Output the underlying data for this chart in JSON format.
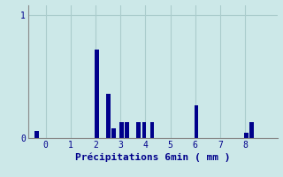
{
  "xlabel": "Précipitations 6min ( mm )",
  "background_color": "#cce8e8",
  "bar_color": "#00008B",
  "grid_color": "#aacccc",
  "axis_color": "#888888",
  "tick_color": "#00008B",
  "label_color": "#00008B",
  "xlim": [
    -0.7,
    9.3
  ],
  "ylim": [
    0,
    1.08
  ],
  "xticks": [
    0,
    1,
    2,
    3,
    4,
    5,
    6,
    7,
    8
  ],
  "yticks": [
    0,
    1
  ],
  "bar_positions": [
    -0.35,
    2.05,
    2.5,
    2.72,
    3.05,
    3.27,
    3.72,
    3.95,
    4.27,
    6.05,
    8.05,
    8.27
  ],
  "bar_heights": [
    0.055,
    0.72,
    0.36,
    0.08,
    0.13,
    0.13,
    0.13,
    0.13,
    0.13,
    0.27,
    0.04,
    0.13
  ],
  "bar_width": 0.17,
  "font_family": "monospace",
  "xlabel_fontsize": 8,
  "tick_fontsize": 7,
  "label_fontweight": "bold"
}
